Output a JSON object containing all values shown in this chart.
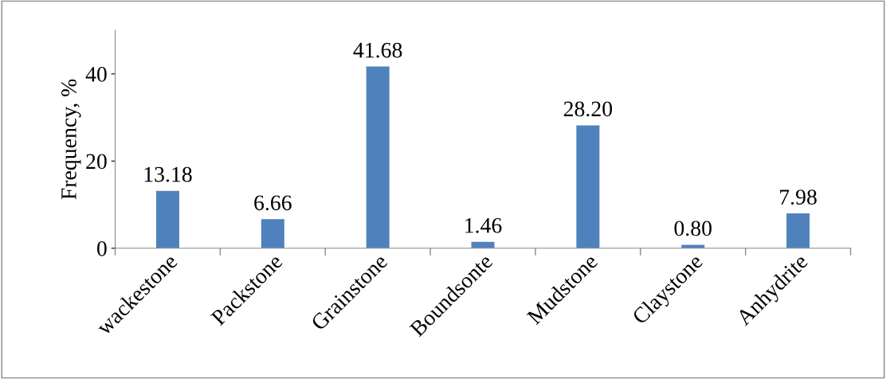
{
  "chart_data": {
    "type": "bar",
    "ylabel": "Frequency, %",
    "categories": [
      "wackestone",
      "Packstone",
      "Grainstone",
      "Boundsonte",
      "Mudstone",
      "Claystone",
      "Anhydrite"
    ],
    "values": [
      13.18,
      6.66,
      41.68,
      1.46,
      28.2,
      0.8,
      7.98
    ],
    "value_labels": [
      "13.18",
      "6.66",
      "41.68",
      "1.46",
      "28.20",
      "0.80",
      "7.98"
    ],
    "color": "#4f81bd",
    "ylim": [
      0,
      50
    ],
    "yticks": [
      0,
      20,
      40
    ],
    "grid": false,
    "legend": false
  }
}
